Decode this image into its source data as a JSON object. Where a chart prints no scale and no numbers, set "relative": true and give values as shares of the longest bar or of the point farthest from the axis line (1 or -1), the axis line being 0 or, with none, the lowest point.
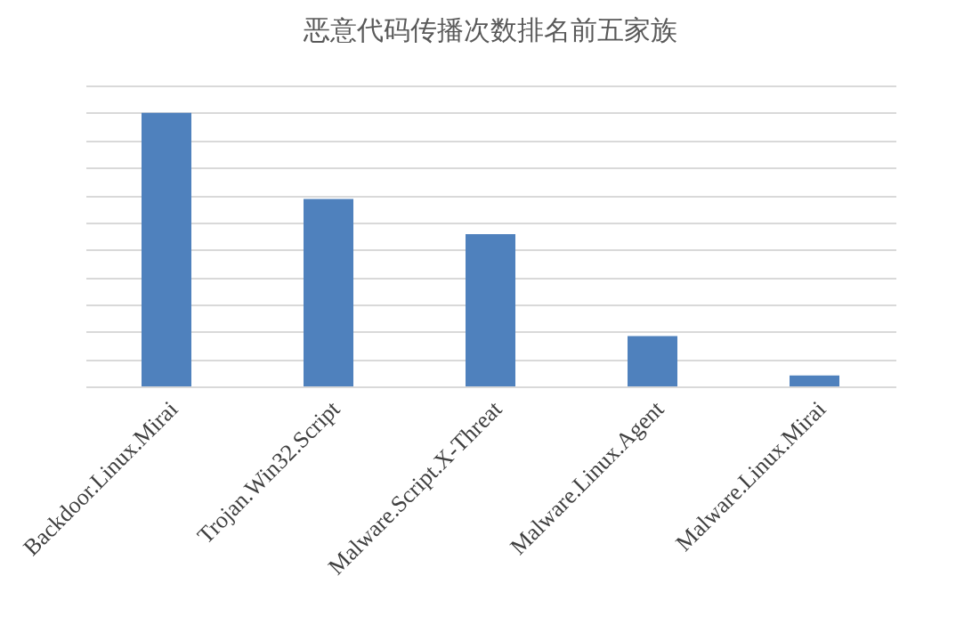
{
  "chart_data": {
    "type": "bar",
    "title": "恶意代码传播次数排名前五家族",
    "relative": true,
    "grid": "y",
    "color": "#4f81bd",
    "categories": [
      "Backdoor.Linux.Mirai",
      "Trojan.Win32.Script",
      "Malware.Script.X-Threat",
      "Malware.Linux.Agent",
      "Malware.Linux.Mirai"
    ],
    "values": [
      1,
      0.685,
      0.557,
      0.184,
      0.04
    ]
  }
}
